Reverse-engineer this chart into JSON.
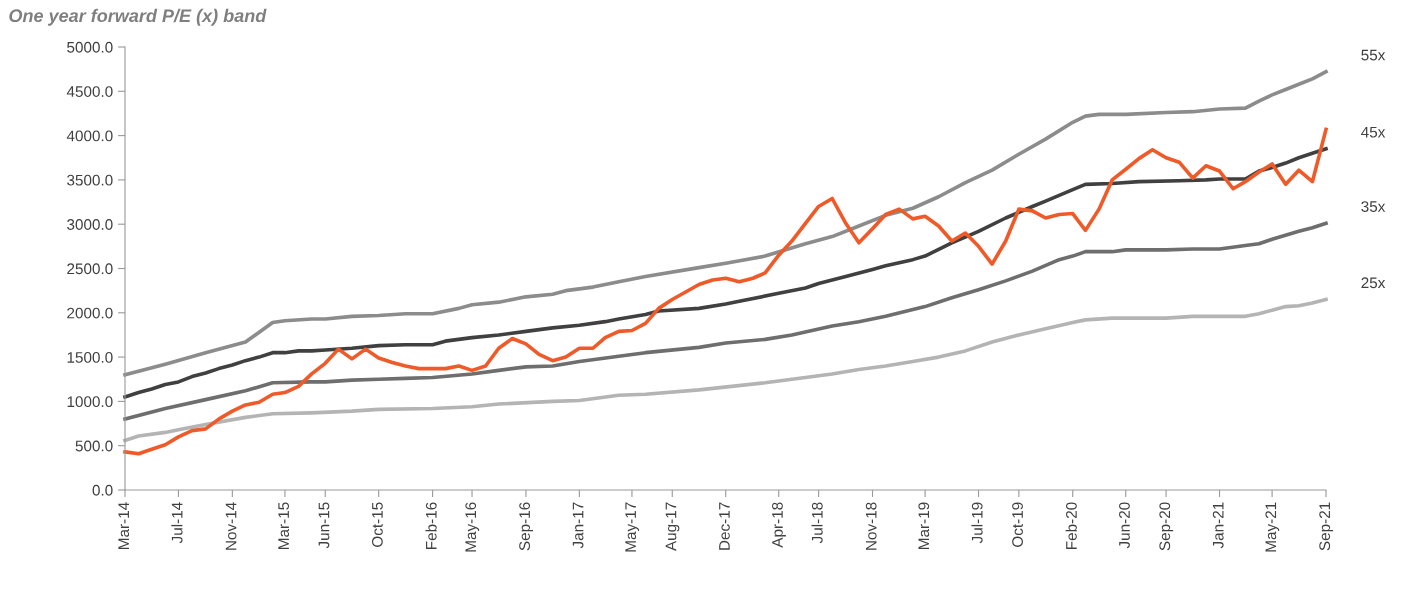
{
  "chart_data": {
    "type": "line",
    "title": "One year forward P/E (x) band",
    "xlim": [
      "2014-03",
      "2021-09"
    ],
    "xticks": [
      {
        "value": "2014-03",
        "label": "Mar-14"
      },
      {
        "value": "2014-07",
        "label": "Jul-14"
      },
      {
        "value": "2014-11",
        "label": "Nov-14"
      },
      {
        "value": "2015-03",
        "label": "Mar-15"
      },
      {
        "value": "2015-06",
        "label": "Jun-15"
      },
      {
        "value": "2015-10",
        "label": "Oct-15"
      },
      {
        "value": "2016-02",
        "label": "Feb-16"
      },
      {
        "value": "2016-05",
        "label": "May-16"
      },
      {
        "value": "2016-09",
        "label": "Sep-16"
      },
      {
        "value": "2017-01",
        "label": "Jan-17"
      },
      {
        "value": "2017-05",
        "label": "May-17"
      },
      {
        "value": "2017-08",
        "label": "Aug-17"
      },
      {
        "value": "2017-12",
        "label": "Dec-17"
      },
      {
        "value": "2018-04",
        "label": "Apr-18"
      },
      {
        "value": "2018-07",
        "label": "Jul-18"
      },
      {
        "value": "2018-11",
        "label": "Nov-18"
      },
      {
        "value": "2019-03",
        "label": "Mar-19"
      },
      {
        "value": "2019-07",
        "label": "Jul-19"
      },
      {
        "value": "2019-10",
        "label": "Oct-19"
      },
      {
        "value": "2020-02",
        "label": "Feb-20"
      },
      {
        "value": "2020-06",
        "label": "Jun-20"
      },
      {
        "value": "2020-09",
        "label": "Sep-20"
      },
      {
        "value": "2021-01",
        "label": "Jan-21"
      },
      {
        "value": "2021-05",
        "label": "May-21"
      },
      {
        "value": "2021-09",
        "label": "Sep-21"
      }
    ],
    "ylim": [
      0,
      5000
    ],
    "yticks": [
      {
        "value": 0,
        "label": "0.0"
      },
      {
        "value": 500,
        "label": "500.0"
      },
      {
        "value": 1000,
        "label": "1000.0"
      },
      {
        "value": 1500,
        "label": "1500.0"
      },
      {
        "value": 2000,
        "label": "2000.0"
      },
      {
        "value": 2500,
        "label": "2500.0"
      },
      {
        "value": 3000,
        "label": "3000.0"
      },
      {
        "value": 3500,
        "label": "3500.0"
      },
      {
        "value": 4000,
        "label": "4000.0"
      },
      {
        "value": 4500,
        "label": "4500.0"
      },
      {
        "value": 5000,
        "label": "5000.0"
      }
    ],
    "grid": false,
    "legend": false,
    "marker": "none",
    "line_style": "solid",
    "series": [
      {
        "name": "55x",
        "color": "#8c8c8c",
        "x": [
          "2014-03",
          "2014-06",
          "2014-09",
          "2014-12",
          "2015-02",
          "2015-03",
          "2015-05",
          "2015-06",
          "2015-08",
          "2015-10",
          "2015-12",
          "2016-02",
          "2016-04",
          "2016-05",
          "2016-07",
          "2016-09",
          "2016-11",
          "2016-12",
          "2017-02",
          "2017-04",
          "2017-06",
          "2017-10",
          "2017-12",
          "2018-03",
          "2018-06",
          "2018-08",
          "2018-10",
          "2018-12",
          "2019-02",
          "2019-04",
          "2019-06",
          "2019-08",
          "2019-10",
          "2019-12",
          "2020-02",
          "2020-03",
          "2020-04",
          "2020-06",
          "2020-09",
          "2020-11",
          "2021-01",
          "2021-03",
          "2021-04",
          "2021-05",
          "2021-06",
          "2021-07",
          "2021-08",
          "2021-09"
        ],
        "values": [
          1300,
          1420,
          1550,
          1670,
          1890,
          1910,
          1930,
          1930,
          1960,
          1970,
          1990,
          1990,
          2050,
          2090,
          2120,
          2180,
          2210,
          2250,
          2290,
          2350,
          2410,
          2510,
          2560,
          2640,
          2780,
          2860,
          2980,
          3100,
          3180,
          3310,
          3470,
          3610,
          3790,
          3960,
          4150,
          4220,
          4240,
          4240,
          4260,
          4270,
          4300,
          4310,
          4390,
          4460,
          4520,
          4580,
          4640,
          4720
        ]
      },
      {
        "name": "45x",
        "color": "#404040",
        "x": [
          "2014-03",
          "2014-04",
          "2014-05",
          "2014-06",
          "2014-07",
          "2014-08",
          "2014-09",
          "2014-10",
          "2014-11",
          "2014-12",
          "2015-01",
          "2015-02",
          "2015-03",
          "2015-04",
          "2015-05",
          "2015-06",
          "2015-08",
          "2015-10",
          "2015-12",
          "2016-02",
          "2016-03",
          "2016-05",
          "2016-07",
          "2016-09",
          "2016-11",
          "2017-01",
          "2017-03",
          "2017-04",
          "2017-06",
          "2017-07",
          "2017-10",
          "2017-12",
          "2018-01",
          "2018-04",
          "2018-06",
          "2018-07",
          "2018-09",
          "2018-11",
          "2018-12",
          "2019-02",
          "2019-03",
          "2019-05",
          "2019-07",
          "2019-09",
          "2019-11",
          "2019-12",
          "2020-02",
          "2020-03",
          "2020-05",
          "2020-07",
          "2020-10",
          "2020-12",
          "2021-01",
          "2021-03",
          "2021-04",
          "2021-05",
          "2021-06",
          "2021-07",
          "2021-08",
          "2021-09"
        ],
        "values": [
          1050,
          1100,
          1140,
          1190,
          1220,
          1280,
          1320,
          1370,
          1410,
          1460,
          1500,
          1550,
          1550,
          1570,
          1570,
          1580,
          1600,
          1630,
          1640,
          1640,
          1680,
          1720,
          1750,
          1790,
          1830,
          1860,
          1900,
          1930,
          1980,
          2020,
          2050,
          2100,
          2130,
          2220,
          2280,
          2330,
          2410,
          2490,
          2530,
          2600,
          2640,
          2790,
          2920,
          3070,
          3200,
          3260,
          3390,
          3450,
          3460,
          3480,
          3490,
          3500,
          3510,
          3510,
          3600,
          3640,
          3690,
          3750,
          3800,
          3850
        ]
      },
      {
        "name": "35x",
        "color": "#6e6e6e",
        "x": [
          "2014-03",
          "2014-06",
          "2014-09",
          "2014-12",
          "2015-02",
          "2015-05",
          "2015-06",
          "2015-08",
          "2015-10",
          "2015-12",
          "2016-02",
          "2016-05",
          "2016-07",
          "2016-09",
          "2016-11",
          "2017-01",
          "2017-04",
          "2017-06",
          "2017-10",
          "2017-12",
          "2018-03",
          "2018-05",
          "2018-08",
          "2018-10",
          "2018-12",
          "2019-03",
          "2019-05",
          "2019-07",
          "2019-09",
          "2019-11",
          "2020-01",
          "2020-02",
          "2020-03",
          "2020-05",
          "2020-06",
          "2020-09",
          "2020-11",
          "2021-01",
          "2021-03",
          "2021-04",
          "2021-05",
          "2021-07",
          "2021-08",
          "2021-09"
        ],
        "values": [
          800,
          920,
          1020,
          1120,
          1210,
          1220,
          1220,
          1240,
          1250,
          1260,
          1270,
          1310,
          1350,
          1390,
          1400,
          1450,
          1510,
          1550,
          1610,
          1660,
          1700,
          1750,
          1850,
          1900,
          1960,
          2070,
          2170,
          2260,
          2360,
          2470,
          2600,
          2640,
          2690,
          2690,
          2710,
          2710,
          2720,
          2720,
          2760,
          2780,
          2830,
          2920,
          2960,
          3010
        ]
      },
      {
        "name": "25x",
        "color": "#b4b4b4",
        "x": [
          "2014-03",
          "2014-04",
          "2014-06",
          "2014-07",
          "2014-09",
          "2014-12",
          "2015-02",
          "2015-05",
          "2015-08",
          "2015-10",
          "2016-02",
          "2016-05",
          "2016-07",
          "2016-11",
          "2017-01",
          "2017-04",
          "2017-06",
          "2017-10",
          "2018-03",
          "2018-06",
          "2018-08",
          "2018-10",
          "2018-12",
          "2019-02",
          "2019-04",
          "2019-06",
          "2019-08",
          "2019-10",
          "2019-12",
          "2020-02",
          "2020-03",
          "2020-05",
          "2020-09",
          "2020-11",
          "2021-03",
          "2021-04",
          "2021-05",
          "2021-06",
          "2021-07",
          "2021-08",
          "2021-09"
        ],
        "values": [
          560,
          610,
          650,
          680,
          740,
          820,
          860,
          870,
          890,
          910,
          920,
          940,
          970,
          1000,
          1010,
          1070,
          1080,
          1130,
          1210,
          1270,
          1310,
          1360,
          1400,
          1450,
          1500,
          1570,
          1670,
          1750,
          1820,
          1890,
          1920,
          1940,
          1940,
          1960,
          1960,
          1990,
          2030,
          2070,
          2080,
          2110,
          2150
        ]
      },
      {
        "color": "#f05a28",
        "x": [
          "2014-03",
          "2014-04",
          "2014-05",
          "2014-06",
          "2014-07",
          "2014-08",
          "2014-09",
          "2014-10",
          "2014-11",
          "2014-12",
          "2015-01",
          "2015-02",
          "2015-03",
          "2015-04",
          "2015-05",
          "2015-06",
          "2015-07",
          "2015-08",
          "2015-09",
          "2015-10",
          "2015-11",
          "2015-12",
          "2016-01",
          "2016-03",
          "2016-04",
          "2016-05",
          "2016-06",
          "2016-07",
          "2016-08",
          "2016-09",
          "2016-10",
          "2016-11",
          "2016-12",
          "2017-01",
          "2017-02",
          "2017-03",
          "2017-04",
          "2017-05",
          "2017-06",
          "2017-07",
          "2017-08",
          "2017-10",
          "2017-11",
          "2017-12",
          "2018-01",
          "2018-02",
          "2018-03",
          "2018-04",
          "2018-05",
          "2018-06",
          "2018-07",
          "2018-08",
          "2018-09",
          "2018-10",
          "2018-11",
          "2018-12",
          "2019-01",
          "2019-02",
          "2019-03",
          "2019-04",
          "2019-05",
          "2019-06",
          "2019-07",
          "2019-08",
          "2019-09",
          "2019-10",
          "2019-11",
          "2019-12",
          "2020-01",
          "2020-02",
          "2020-03",
          "2020-04",
          "2020-05",
          "2020-06",
          "2020-07",
          "2020-08",
          "2020-09",
          "2020-10",
          "2020-11",
          "2020-12",
          "2021-01",
          "2021-02",
          "2021-03",
          "2021-04",
          "2021-05",
          "2021-06",
          "2021-07",
          "2021-08",
          "2021-09"
        ],
        "values": [
          430,
          410,
          460,
          510,
          600,
          670,
          690,
          800,
          890,
          960,
          990,
          1080,
          1100,
          1170,
          1310,
          1430,
          1590,
          1480,
          1590,
          1490,
          1440,
          1400,
          1370,
          1370,
          1400,
          1350,
          1400,
          1600,
          1710,
          1650,
          1530,
          1460,
          1500,
          1600,
          1600,
          1720,
          1790,
          1800,
          1880,
          2050,
          2150,
          2320,
          2370,
          2390,
          2350,
          2390,
          2450,
          2650,
          2810,
          3010,
          3200,
          3290,
          3010,
          2790,
          2950,
          3110,
          3170,
          3060,
          3090,
          2980,
          2810,
          2900,
          2750,
          2550,
          2810,
          3170,
          3150,
          3070,
          3110,
          3120,
          2930,
          3170,
          3500,
          3620,
          3740,
          3840,
          3750,
          3700,
          3520,
          3660,
          3600,
          3400,
          3480,
          3590,
          3680,
          3450,
          3610,
          3480,
          4070
        ]
      }
    ]
  }
}
